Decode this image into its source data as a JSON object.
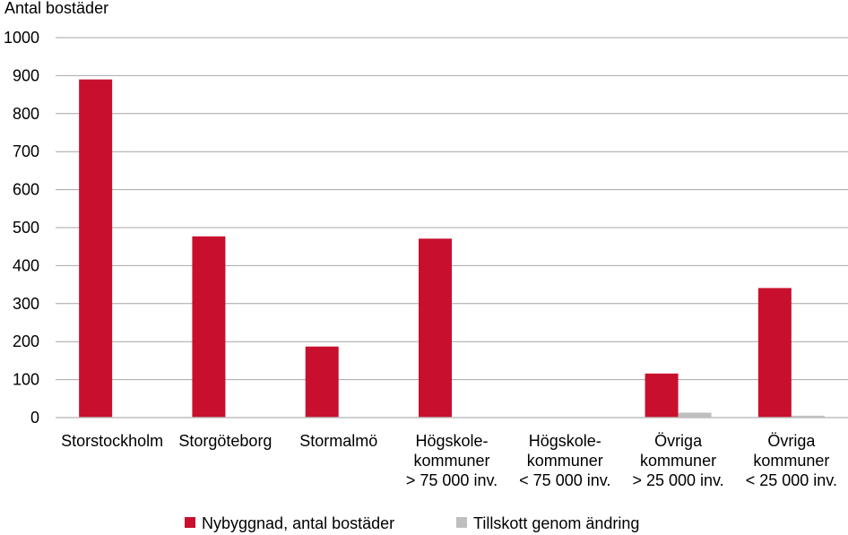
{
  "chart_data": {
    "type": "bar",
    "ylabel": "Antal bostäder",
    "ylim": [
      0,
      1000
    ],
    "yticks": [
      "0",
      "100",
      "200",
      "300",
      "400",
      "500",
      "600",
      "700",
      "800",
      "900",
      "1000"
    ],
    "grid": true,
    "legend_position": "bottom",
    "categories": [
      [
        "Storstockholm"
      ],
      [
        "Storgöteborg"
      ],
      [
        "Stormalmö"
      ],
      [
        "Högskole-",
        "kommuner",
        "> 75 000 inv."
      ],
      [
        "Högskole-",
        "kommuner",
        "< 75 000 inv."
      ],
      [
        "Övriga",
        "kommuner",
        "> 25 000 inv."
      ],
      [
        "Övriga",
        "kommuner",
        "< 25 000 inv."
      ]
    ],
    "series": [
      {
        "name": "Nybyggnad, antal bostäder",
        "color": "#C8102E",
        "values": [
          890,
          477,
          187,
          471,
          0,
          116,
          341
        ]
      },
      {
        "name": "Tillskott genom ändring",
        "color": "#BFBFBF",
        "values": [
          0,
          0,
          0,
          0,
          0,
          13,
          5
        ]
      }
    ]
  }
}
